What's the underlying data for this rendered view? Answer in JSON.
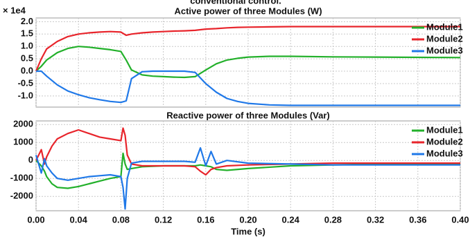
{
  "caption": "conventional control.",
  "chart_data": [
    {
      "type": "line",
      "title": "Active power of three Modules (W)",
      "y_scale_label": "× 1e4",
      "x": [
        0,
        0.005,
        0.01,
        0.02,
        0.03,
        0.04,
        0.05,
        0.06,
        0.07,
        0.08,
        0.085,
        0.09,
        0.1,
        0.11,
        0.12,
        0.13,
        0.14,
        0.15,
        0.16,
        0.17,
        0.18,
        0.19,
        0.2,
        0.22,
        0.24,
        0.28,
        0.32,
        0.36,
        0.4
      ],
      "series": [
        {
          "name": "Module1",
          "color": "#22b02a",
          "values": [
            0,
            0.2,
            0.45,
            0.75,
            0.92,
            1.0,
            0.97,
            0.92,
            0.87,
            0.8,
            0.45,
            0.05,
            -0.15,
            -0.2,
            -0.22,
            -0.24,
            -0.25,
            -0.22,
            0.05,
            0.3,
            0.45,
            0.52,
            0.57,
            0.6,
            0.6,
            0.58,
            0.57,
            0.56,
            0.55
          ]
        },
        {
          "name": "Module2",
          "color": "#e8242b",
          "values": [
            0,
            0.5,
            0.9,
            1.2,
            1.4,
            1.5,
            1.55,
            1.58,
            1.6,
            1.58,
            1.45,
            1.5,
            1.55,
            1.58,
            1.6,
            1.62,
            1.63,
            1.65,
            1.7,
            1.72,
            1.75,
            1.77,
            1.78,
            1.79,
            1.8,
            1.8,
            1.8,
            1.8,
            1.8
          ]
        },
        {
          "name": "Module3",
          "color": "#1f78e8",
          "values": [
            0,
            0,
            -0.2,
            -0.55,
            -0.8,
            -0.95,
            -1.07,
            -1.15,
            -1.22,
            -1.26,
            -1.2,
            -0.3,
            -0.02,
            0,
            0,
            0,
            0,
            -0.05,
            -0.5,
            -0.85,
            -1.1,
            -1.22,
            -1.3,
            -1.36,
            -1.38,
            -1.38,
            -1.38,
            -1.38,
            -1.38
          ]
        }
      ],
      "xlim": [
        0,
        0.4
      ],
      "xticks": [
        0,
        0.04,
        0.08,
        0.12,
        0.16,
        0.2,
        0.24,
        0.28,
        0.32,
        0.36,
        0.4
      ],
      "ylim": [
        -1.45,
        2.15
      ],
      "yticks": [
        {
          "value": 2,
          "label": "2.0"
        },
        1.5,
        {
          "value": 1,
          "label": "1.0"
        },
        0.5,
        {
          "value": 0,
          "label": "0.0"
        },
        -0.5,
        {
          "value": -1,
          "label": "-1.0"
        }
      ],
      "grid": true,
      "legend": "upper-right"
    },
    {
      "type": "line",
      "title": "Reactive power of three Modules (Var)",
      "x_label": "Time (s)",
      "x": [
        0,
        0.005,
        0.008,
        0.01,
        0.015,
        0.02,
        0.03,
        0.04,
        0.05,
        0.06,
        0.07,
        0.08,
        0.082,
        0.084,
        0.086,
        0.09,
        0.1,
        0.12,
        0.14,
        0.15,
        0.155,
        0.16,
        0.165,
        0.17,
        0.18,
        0.2,
        0.24,
        0.28,
        0.32,
        0.36,
        0.4
      ],
      "series": [
        {
          "name": "Module1",
          "color": "#22b02a",
          "values": [
            0,
            -300,
            -600,
            -900,
            -1300,
            -1500,
            -1550,
            -1450,
            -1300,
            -1150,
            -1000,
            -900,
            400,
            -200,
            -500,
            -450,
            -350,
            -300,
            -300,
            -300,
            -250,
            -300,
            -350,
            -500,
            -550,
            -450,
            -300,
            -250,
            -200,
            -200,
            -200
          ]
        },
        {
          "name": "Module2",
          "color": "#e8242b",
          "values": [
            0,
            600,
            -200,
            200,
            800,
            1200,
            1500,
            1700,
            1500,
            1300,
            1200,
            1100,
            1800,
            1400,
            300,
            -200,
            -300,
            -300,
            -300,
            -350,
            -600,
            -800,
            -500,
            -400,
            -300,
            -250,
            -200,
            -150,
            -150,
            -150,
            -150
          ]
        },
        {
          "name": "Module3",
          "color": "#1f78e8",
          "values": [
            300,
            -700,
            100,
            -300,
            -700,
            -1000,
            -1100,
            -1000,
            -900,
            -850,
            -800,
            -900,
            -1500,
            -2700,
            -1000,
            -150,
            -50,
            -50,
            -50,
            -100,
            700,
            -300,
            500,
            -200,
            0,
            -150,
            -200,
            -250,
            -250,
            -250,
            -250
          ]
        }
      ],
      "xlim": [
        0,
        0.4
      ],
      "xticks": [
        {
          "value": 0,
          "label": "0.00"
        },
        0.04,
        0.08,
        0.12,
        0.16,
        {
          "value": 0.2,
          "label": "0.20"
        },
        0.24,
        0.28,
        0.32,
        0.36,
        {
          "value": 0.4,
          "label": "0.40"
        }
      ],
      "ylim": [
        -2800,
        2200
      ],
      "yticks": [
        2000,
        1000,
        0,
        -1000,
        -2000
      ],
      "grid": true,
      "legend": "upper-right"
    }
  ]
}
